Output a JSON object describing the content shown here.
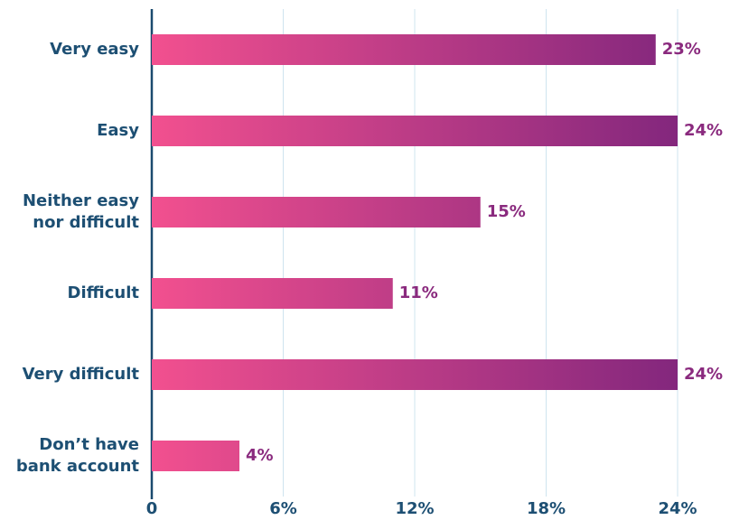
{
  "chart_data": {
    "type": "hbar",
    "categories": [
      [
        "Very easy"
      ],
      [
        "Easy"
      ],
      [
        "Neither easy",
        "nor difficult"
      ],
      [
        "Difficult"
      ],
      [
        "Very difficult"
      ],
      [
        "Don’t have",
        "bank account"
      ]
    ],
    "values": [
      23,
      24,
      15,
      11,
      24,
      4
    ],
    "value_labels": [
      "23%",
      "24%",
      "15%",
      "11%",
      "24%",
      "4%"
    ],
    "color": [
      "#f2508f",
      "#83277d"
    ],
    "xlim": [
      0,
      24
    ],
    "xticks": [
      0,
      {
        "value": 6,
        "label": "6%"
      },
      {
        "value": 12,
        "label": "12%"
      },
      {
        "value": 18,
        "label": "18%"
      },
      {
        "value": 24,
        "label": "24%"
      }
    ],
    "grid": true
  }
}
